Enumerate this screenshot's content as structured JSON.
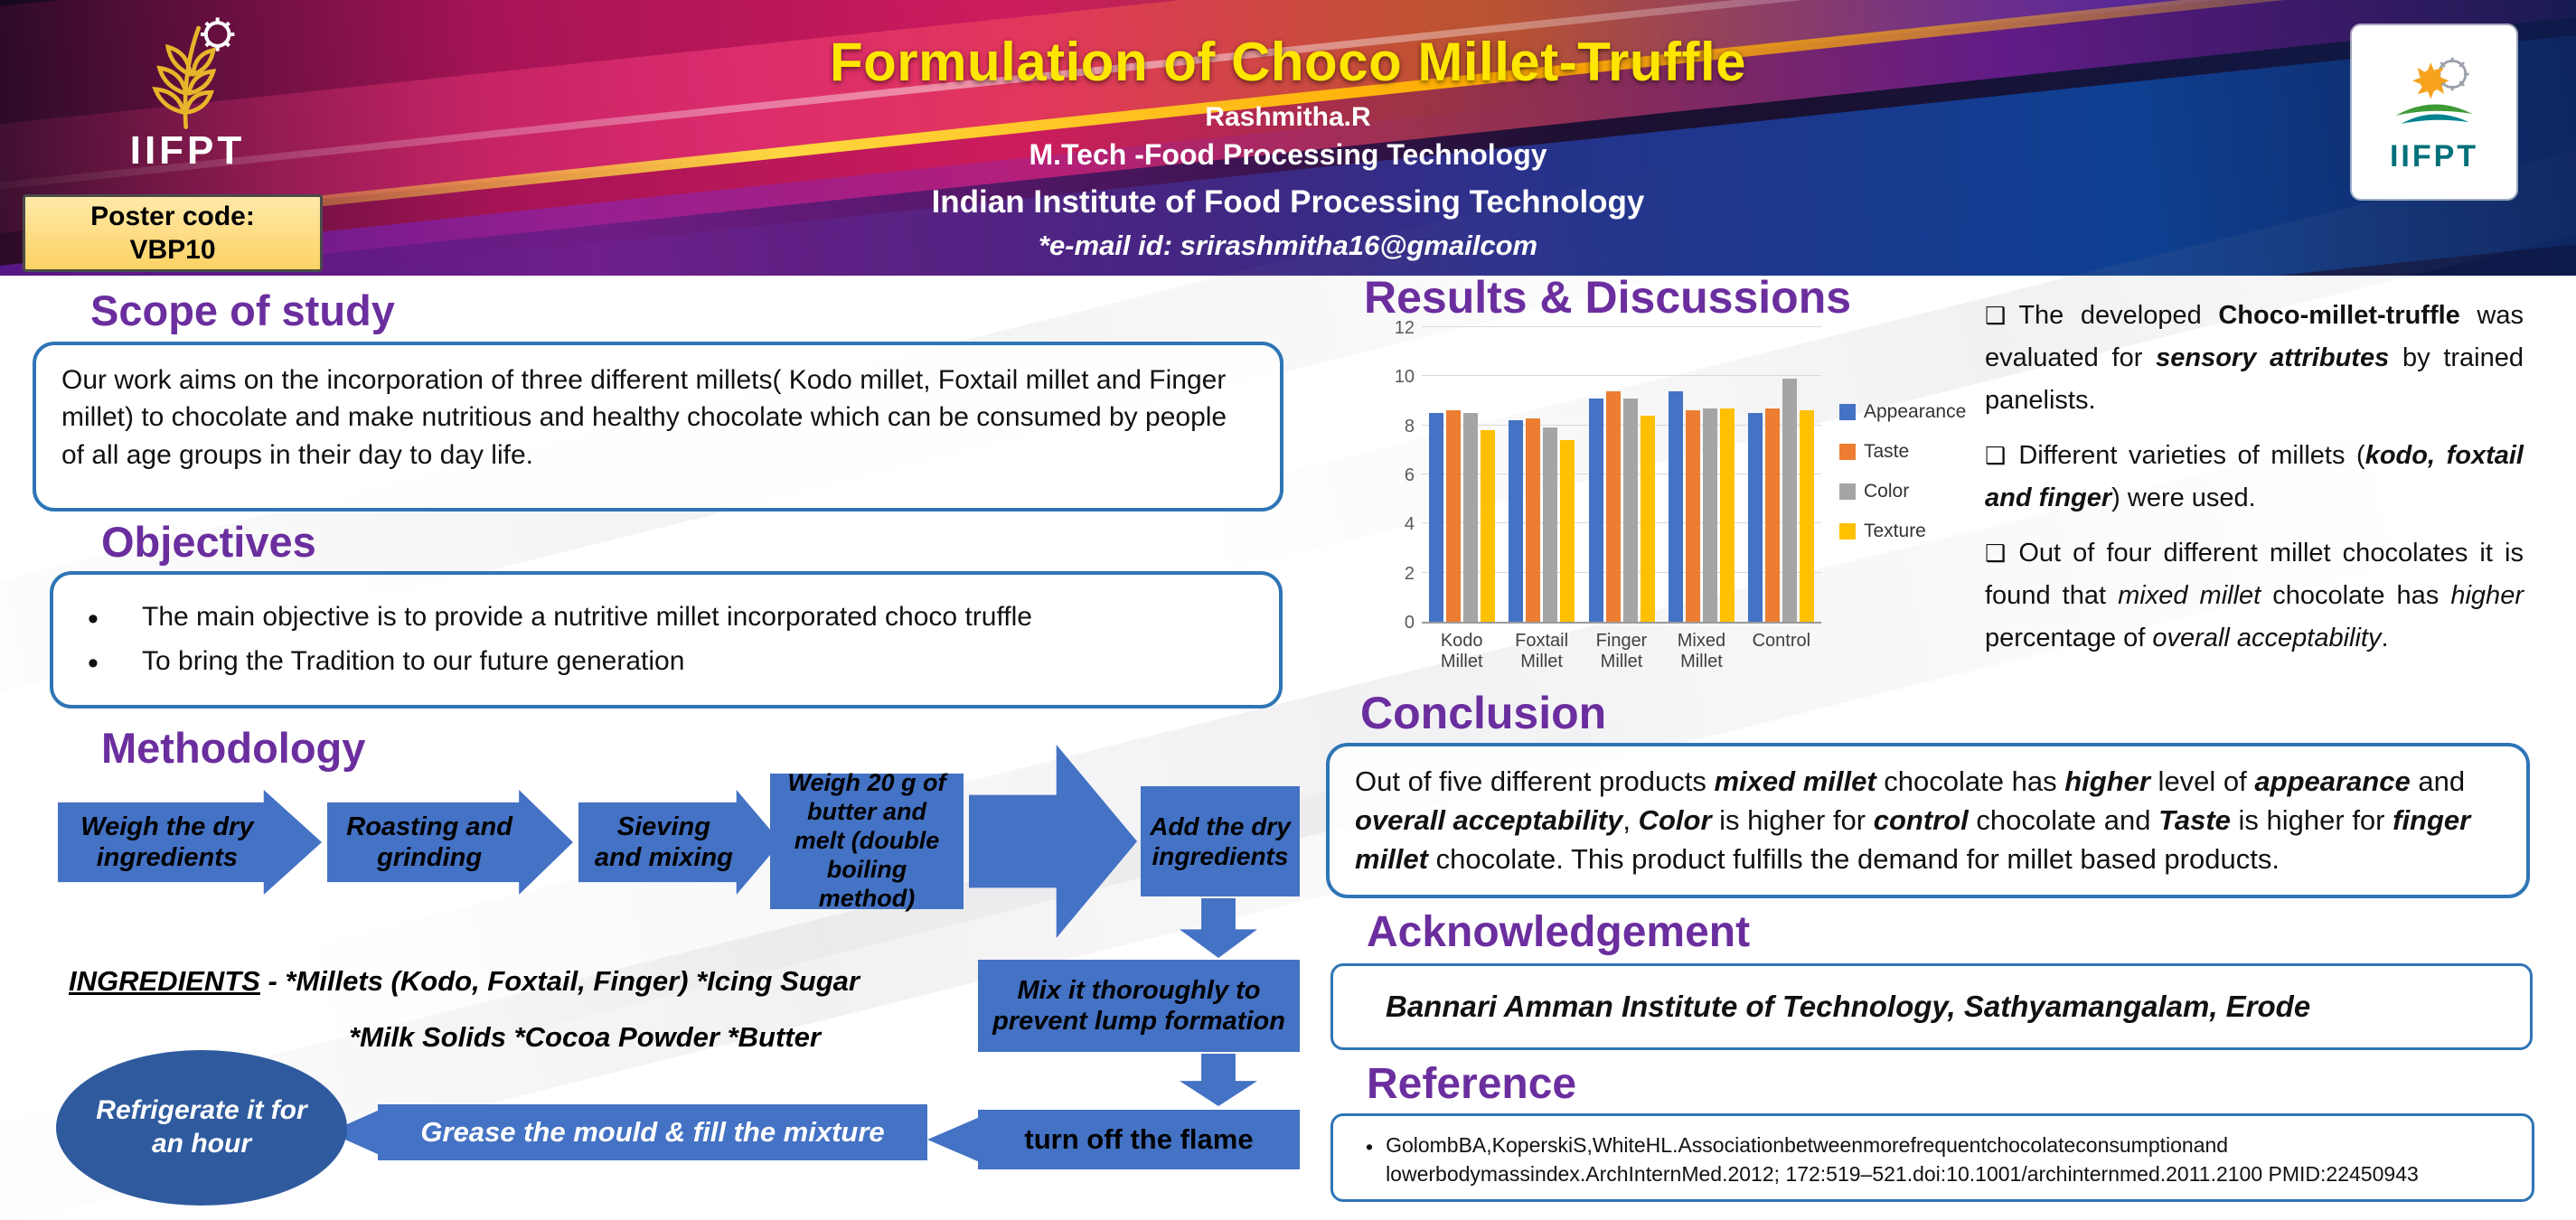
{
  "header": {
    "poster_code_label": "Poster code:",
    "poster_code_value": "VBP10",
    "title": "Formulation of Choco Millet-Truffle",
    "author": "Rashmitha.R",
    "program": "M.Tech -Food Processing Technology",
    "institute": "Indian Institute of Food Processing Technology",
    "email_line": "*e-mail id: srirashmitha16@gmailcom",
    "logo_left_text": "IIFPT",
    "logo_right_text": "IIFPT"
  },
  "scope": {
    "heading": "Scope of study",
    "body": "Our work aims on the incorporation of three different millets( Kodo millet, Foxtail millet and Finger millet) to chocolate and  make nutritious and healthy chocolate  which can be consumed by people of all age groups in their day to day life."
  },
  "objectives": {
    "heading": "Objectives",
    "items": [
      "The main objective is to provide a nutritive millet incorporated choco truffle",
      "To bring the Tradition to our future generation"
    ]
  },
  "methodology": {
    "heading": "Methodology",
    "step_weigh_dry": "Weigh  the  dry ingredients",
    "step_roast": "Roasting and grinding",
    "step_sieve": "Sieving and mixing",
    "step_butter": "Weigh 20 g of butter and melt (double boiling method)",
    "step_add_dry": "Add  the  dry ingredients",
    "step_mix": "Mix  it  thoroughly  to prevent lump formation",
    "step_flame": "turn off  the flame",
    "step_grease": "Grease the mould & fill the mixture",
    "step_refrigerate": "Refrigerate it for an hour",
    "ingredients": {
      "segments": [
        {
          "t": "INGREDIENTS",
          "u": true
        },
        {
          "t": " - *Millets (Kodo, Foxtail, Finger) *Icing Sugar"
        }
      ],
      "line2": "*Milk Solids *Cocoa Powder *Butter"
    }
  },
  "results": {
    "heading": "Results & Discussions",
    "bullet_icon": "❑",
    "bullets": [
      {
        "segments": [
          {
            "t": "The developed "
          },
          {
            "t": "Choco-millet-truffle",
            "b": true
          },
          {
            "t": " was evaluated for "
          },
          {
            "t": "sensory attributes",
            "b": true,
            "i": true
          },
          {
            "t": " by trained panelists."
          }
        ]
      },
      {
        "segments": [
          {
            "t": "Different varieties of millets ("
          },
          {
            "t": "kodo, foxtail and finger",
            "b": true,
            "i": true
          },
          {
            "t": ") were used."
          }
        ]
      },
      {
        "segments": [
          {
            "t": "Out of four different millet chocolates it is found that "
          },
          {
            "t": "mixed millet",
            "i": true
          },
          {
            "t": " chocolate has "
          },
          {
            "t": "higher",
            "i": true
          },
          {
            "t": " percentage of "
          },
          {
            "t": "overall acceptability",
            "i": true
          },
          {
            "t": "."
          }
        ]
      }
    ]
  },
  "chart_data": {
    "type": "bar",
    "title": "",
    "xlabel": "",
    "ylabel": "",
    "categories": [
      "Kodo Millet",
      "Foxtail Millet",
      "Finger Millet",
      "Mixed Millet",
      "Control"
    ],
    "series": [
      {
        "name": "Appearance",
        "color": "#4472C4",
        "values": [
          8.5,
          8.2,
          9.1,
          9.4,
          8.5
        ]
      },
      {
        "name": "Taste",
        "color": "#ED7D31",
        "values": [
          8.6,
          8.3,
          9.4,
          8.6,
          8.7
        ]
      },
      {
        "name": "Color",
        "color": "#A5A5A5",
        "values": [
          8.5,
          7.9,
          9.1,
          8.7,
          9.9
        ]
      },
      {
        "name": "Texture",
        "color": "#FFC000",
        "values": [
          7.8,
          7.4,
          8.4,
          8.7,
          8.6
        ]
      }
    ],
    "ylim": [
      0,
      12
    ],
    "ytick_step": 2,
    "grid": true,
    "legend_position": "right"
  },
  "conclusion": {
    "heading": "Conclusion",
    "segments": [
      {
        "t": "Out of five different products "
      },
      {
        "t": "mixed millet",
        "b": true,
        "i": true
      },
      {
        "t": " chocolate has "
      },
      {
        "t": "higher",
        "b": true,
        "i": true
      },
      {
        "t": " level of "
      },
      {
        "t": "appearance",
        "b": true,
        "i": true
      },
      {
        "t": " and "
      },
      {
        "t": "overall acceptability",
        "b": true,
        "i": true
      },
      {
        "t": ", "
      },
      {
        "t": "Color",
        "b": true,
        "i": true
      },
      {
        "t": " is higher for "
      },
      {
        "t": "control",
        "b": true,
        "i": true
      },
      {
        "t": " chocolate and "
      },
      {
        "t": "Taste",
        "b": true,
        "i": true
      },
      {
        "t": " is higher for "
      },
      {
        "t": "finger millet",
        "b": true,
        "i": true
      },
      {
        "t": " chocolate. This product fulfills the demand for millet based products."
      }
    ]
  },
  "acknowledgement": {
    "heading": "Acknowledgement",
    "body": "Bannari Amman Institute of Technology, Sathyamangalam, Erode"
  },
  "reference": {
    "heading": "Reference",
    "bullet_icon": "•",
    "body": "GolombBA,KoperskiS,WhiteHL.Associationbetweenmorefrequentchocolateconsumptionand lowerbodymassindex.ArchInternMed.2012; 172:519–521.doi:10.1001/archinternmed.2011.2100 PMID:22450943"
  }
}
